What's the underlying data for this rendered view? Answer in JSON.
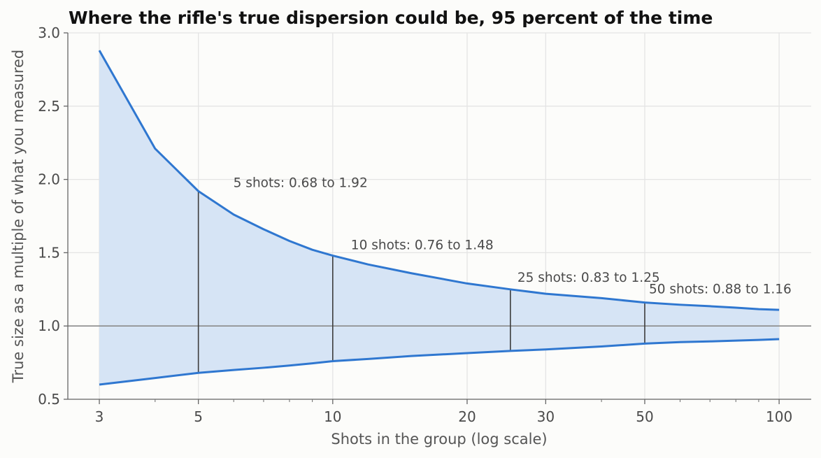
{
  "chart_data": {
    "type": "area",
    "title": "Where the rifle's true dispersion could be, 95 percent of the time",
    "xlabel": "Shots in the group (log scale)",
    "ylabel": "True size as a multiple of what you measured",
    "xscale": "log",
    "xlim": [
      2.55,
      118
    ],
    "ylim": [
      0.5,
      3.0
    ],
    "xticks": [
      3,
      5,
      10,
      20,
      30,
      50,
      100
    ],
    "xtick_labels": [
      "3",
      "5",
      "10",
      "20",
      "30",
      "50",
      "100"
    ],
    "yticks": [
      0.5,
      1.0,
      1.5,
      2.0,
      2.5,
      3.0
    ],
    "ytick_labels": [
      "0.5",
      "1.0",
      "1.5",
      "2.0",
      "2.5",
      "3.0"
    ],
    "grid": true,
    "reference_line": 1.0,
    "band_color": "#d6e4f5",
    "line_color": "#2f77d0",
    "x": [
      3,
      4,
      5,
      6,
      7,
      8,
      9,
      10,
      12,
      15,
      20,
      25,
      30,
      40,
      50,
      60,
      70,
      80,
      90,
      100
    ],
    "series": [
      {
        "values": [
          2.88,
          2.21,
          1.92,
          1.76,
          1.66,
          1.58,
          1.52,
          1.48,
          1.42,
          1.36,
          1.29,
          1.25,
          1.22,
          1.19,
          1.16,
          1.145,
          1.135,
          1.125,
          1.115,
          1.11
        ]
      },
      {
        "values": [
          0.6,
          0.645,
          0.68,
          0.7,
          0.715,
          0.73,
          0.745,
          0.76,
          0.775,
          0.795,
          0.815,
          0.83,
          0.84,
          0.86,
          0.88,
          0.89,
          0.895,
          0.9,
          0.905,
          0.91
        ]
      }
    ],
    "annotations": [
      {
        "x": 5,
        "low": 0.68,
        "high": 1.92,
        "text": "5 shots: 0.68 to 1.92"
      },
      {
        "x": 10,
        "low": 0.76,
        "high": 1.48,
        "text": "10 shots: 0.76 to 1.48"
      },
      {
        "x": 25,
        "low": 0.83,
        "high": 1.25,
        "text": "25 shots: 0.83 to 1.25"
      },
      {
        "x": 50,
        "low": 0.88,
        "high": 1.16,
        "text": "50 shots: 0.88 to 1.16"
      }
    ]
  }
}
